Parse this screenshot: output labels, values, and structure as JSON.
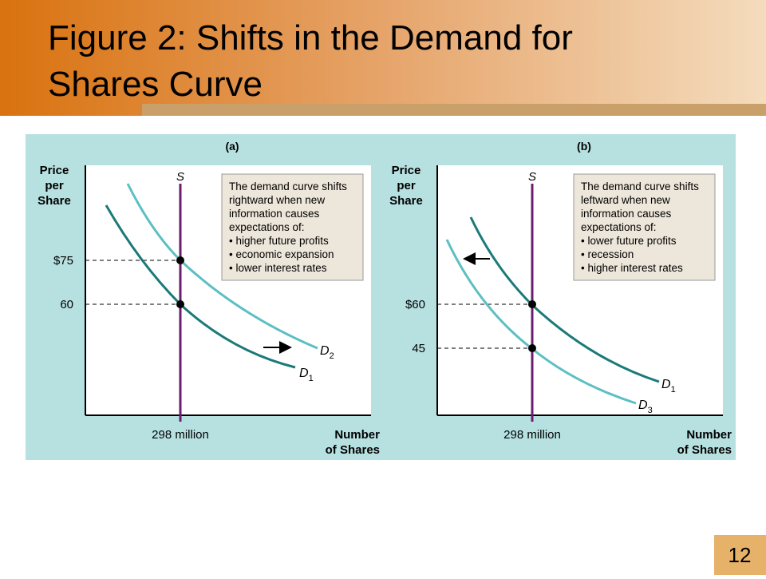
{
  "header": {
    "title_lines": [
      "Figure 2:  Shifts in the Demand for",
      "Shares Curve"
    ]
  },
  "panels": [
    {
      "label": "(a)",
      "y_axis_label": [
        "Price",
        "per",
        "Share"
      ],
      "x_axis_label": [
        "Number",
        "of Shares"
      ],
      "supply_label": "S",
      "x_tick": "298 million",
      "y_ticks": [
        "$75",
        "60"
      ],
      "curves": [
        {
          "letter": "D",
          "subscript": "2"
        },
        {
          "letter": "D",
          "subscript": "1"
        }
      ],
      "note": [
        "The demand curve shifts",
        "rightward when new",
        "information causes",
        "expectations of:",
        "• higher future profits",
        "• economic expansion",
        "• lower interest rates"
      ]
    },
    {
      "label": "(b)",
      "y_axis_label": [
        "Price",
        "per",
        "Share"
      ],
      "x_axis_label": [
        "Number",
        "of Shares"
      ],
      "supply_label": "S",
      "x_tick": "298 million",
      "y_ticks": [
        "$60",
        "45"
      ],
      "curves": [
        {
          "letter": "D",
          "subscript": "1"
        },
        {
          "letter": "D",
          "subscript": "3"
        }
      ],
      "note": [
        "The demand curve shifts",
        "leftward when new",
        "information causes",
        "expectations of:",
        "• lower future profits",
        "• recession",
        "• higher interest rates"
      ]
    }
  ],
  "page_number": "12"
}
